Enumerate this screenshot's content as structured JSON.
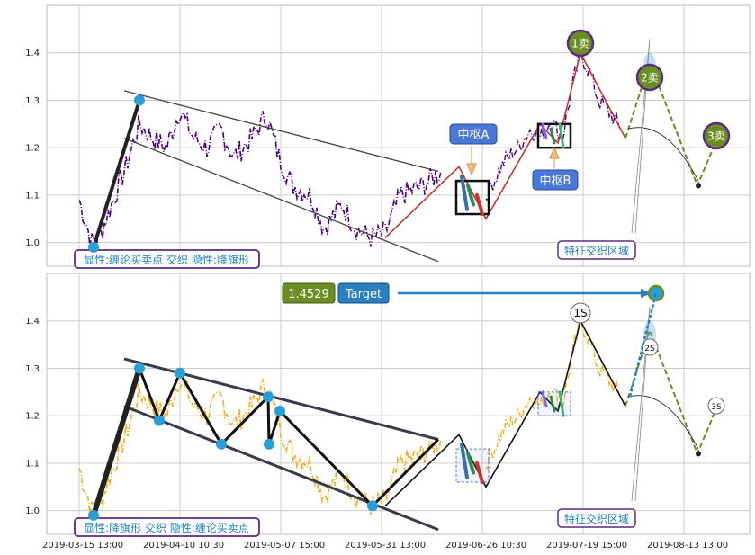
{
  "chart_data": [
    {
      "type": "line",
      "title": "",
      "xlabel": "",
      "ylabel": "",
      "ylim": [
        0.95,
        1.5
      ],
      "yticks": [
        1.0,
        1.1,
        1.2,
        1.3,
        1.4
      ],
      "grid": true,
      "price_color": "#4b0082",
      "series": [
        {
          "values": [
            1.09,
            1.07,
            1.05,
            1.03,
            1.0,
            0.99,
            1.05,
            1.15,
            1.25,
            1.3,
            1.22,
            1.2,
            1.25,
            1.28,
            1.22,
            1.2,
            1.25,
            1.27,
            1.22,
            1.17,
            1.2,
            1.24,
            1.27,
            1.2,
            1.15,
            1.1,
            1.14,
            1.12,
            1.05,
            1.02,
            1.06,
            1.08,
            1.04,
            1.02,
            1.01,
            1.04,
            1.08,
            1.1,
            1.12,
            1.14,
            1.16,
            1.15
          ]
        }
      ],
      "annotations": [
        {
          "text": "中枢A",
          "kind": "pivot-label"
        },
        {
          "text": "中枢B",
          "kind": "pivot-label"
        },
        {
          "text": "1卖",
          "kind": "sell-point"
        },
        {
          "text": "2卖",
          "kind": "sell-point"
        },
        {
          "text": "3卖",
          "kind": "sell-point"
        },
        {
          "text": "特征交织区域",
          "kind": "region-label"
        }
      ],
      "status_label": "显性:缠论买卖点 交织 隐性:降旗形"
    },
    {
      "type": "line",
      "title": "",
      "xlabel": "",
      "ylabel": "",
      "ylim": [
        0.95,
        1.5
      ],
      "yticks": [
        1.0,
        1.1,
        1.2,
        1.3,
        1.4
      ],
      "grid": true,
      "price_color": "#f0b020",
      "x_tick_labels": [
        "2019-03-15 13:00",
        "2019-04-10 10:30",
        "2019-05-07 15:00",
        "2019-05-31 13:00",
        "2019-06-26 10:30",
        "2019-07-19 15:00",
        "2019-08-13 13:00"
      ],
      "series": [
        {
          "values": [
            1.09,
            1.07,
            1.05,
            1.03,
            1.0,
            0.99,
            1.05,
            1.15,
            1.25,
            1.3,
            1.22,
            1.2,
            1.25,
            1.28,
            1.22,
            1.2,
            1.25,
            1.27,
            1.22,
            1.17,
            1.2,
            1.24,
            1.27,
            1.2,
            1.15,
            1.1,
            1.14,
            1.12,
            1.05,
            1.02,
            1.06,
            1.08,
            1.04,
            1.02,
            1.01,
            1.04,
            1.08,
            1.1,
            1.12,
            1.14,
            1.16,
            1.15
          ]
        }
      ],
      "annotations": [
        {
          "text": "1S",
          "kind": "sell-point"
        },
        {
          "text": "2S",
          "kind": "sell-point"
        },
        {
          "text": "3S",
          "kind": "sell-point"
        },
        {
          "text": "特征交织区域",
          "kind": "region-label"
        }
      ],
      "target": {
        "value": "1.4529",
        "label": "Target"
      },
      "status_label": "显性:降旗形 交织 隐性:缠论买卖点"
    }
  ],
  "colors": {
    "pivot_label_bg": "#4a78d6",
    "sell_circle_bg": "#6b8e23",
    "sell_circle_border": "#5a2a82",
    "status_border": "#5a2a82",
    "status_text": "#1e7fc0",
    "target_value_bg": "#6b8e23",
    "target_label_bg": "#2a7fc0",
    "dashed_projection": "#6b8e23"
  }
}
